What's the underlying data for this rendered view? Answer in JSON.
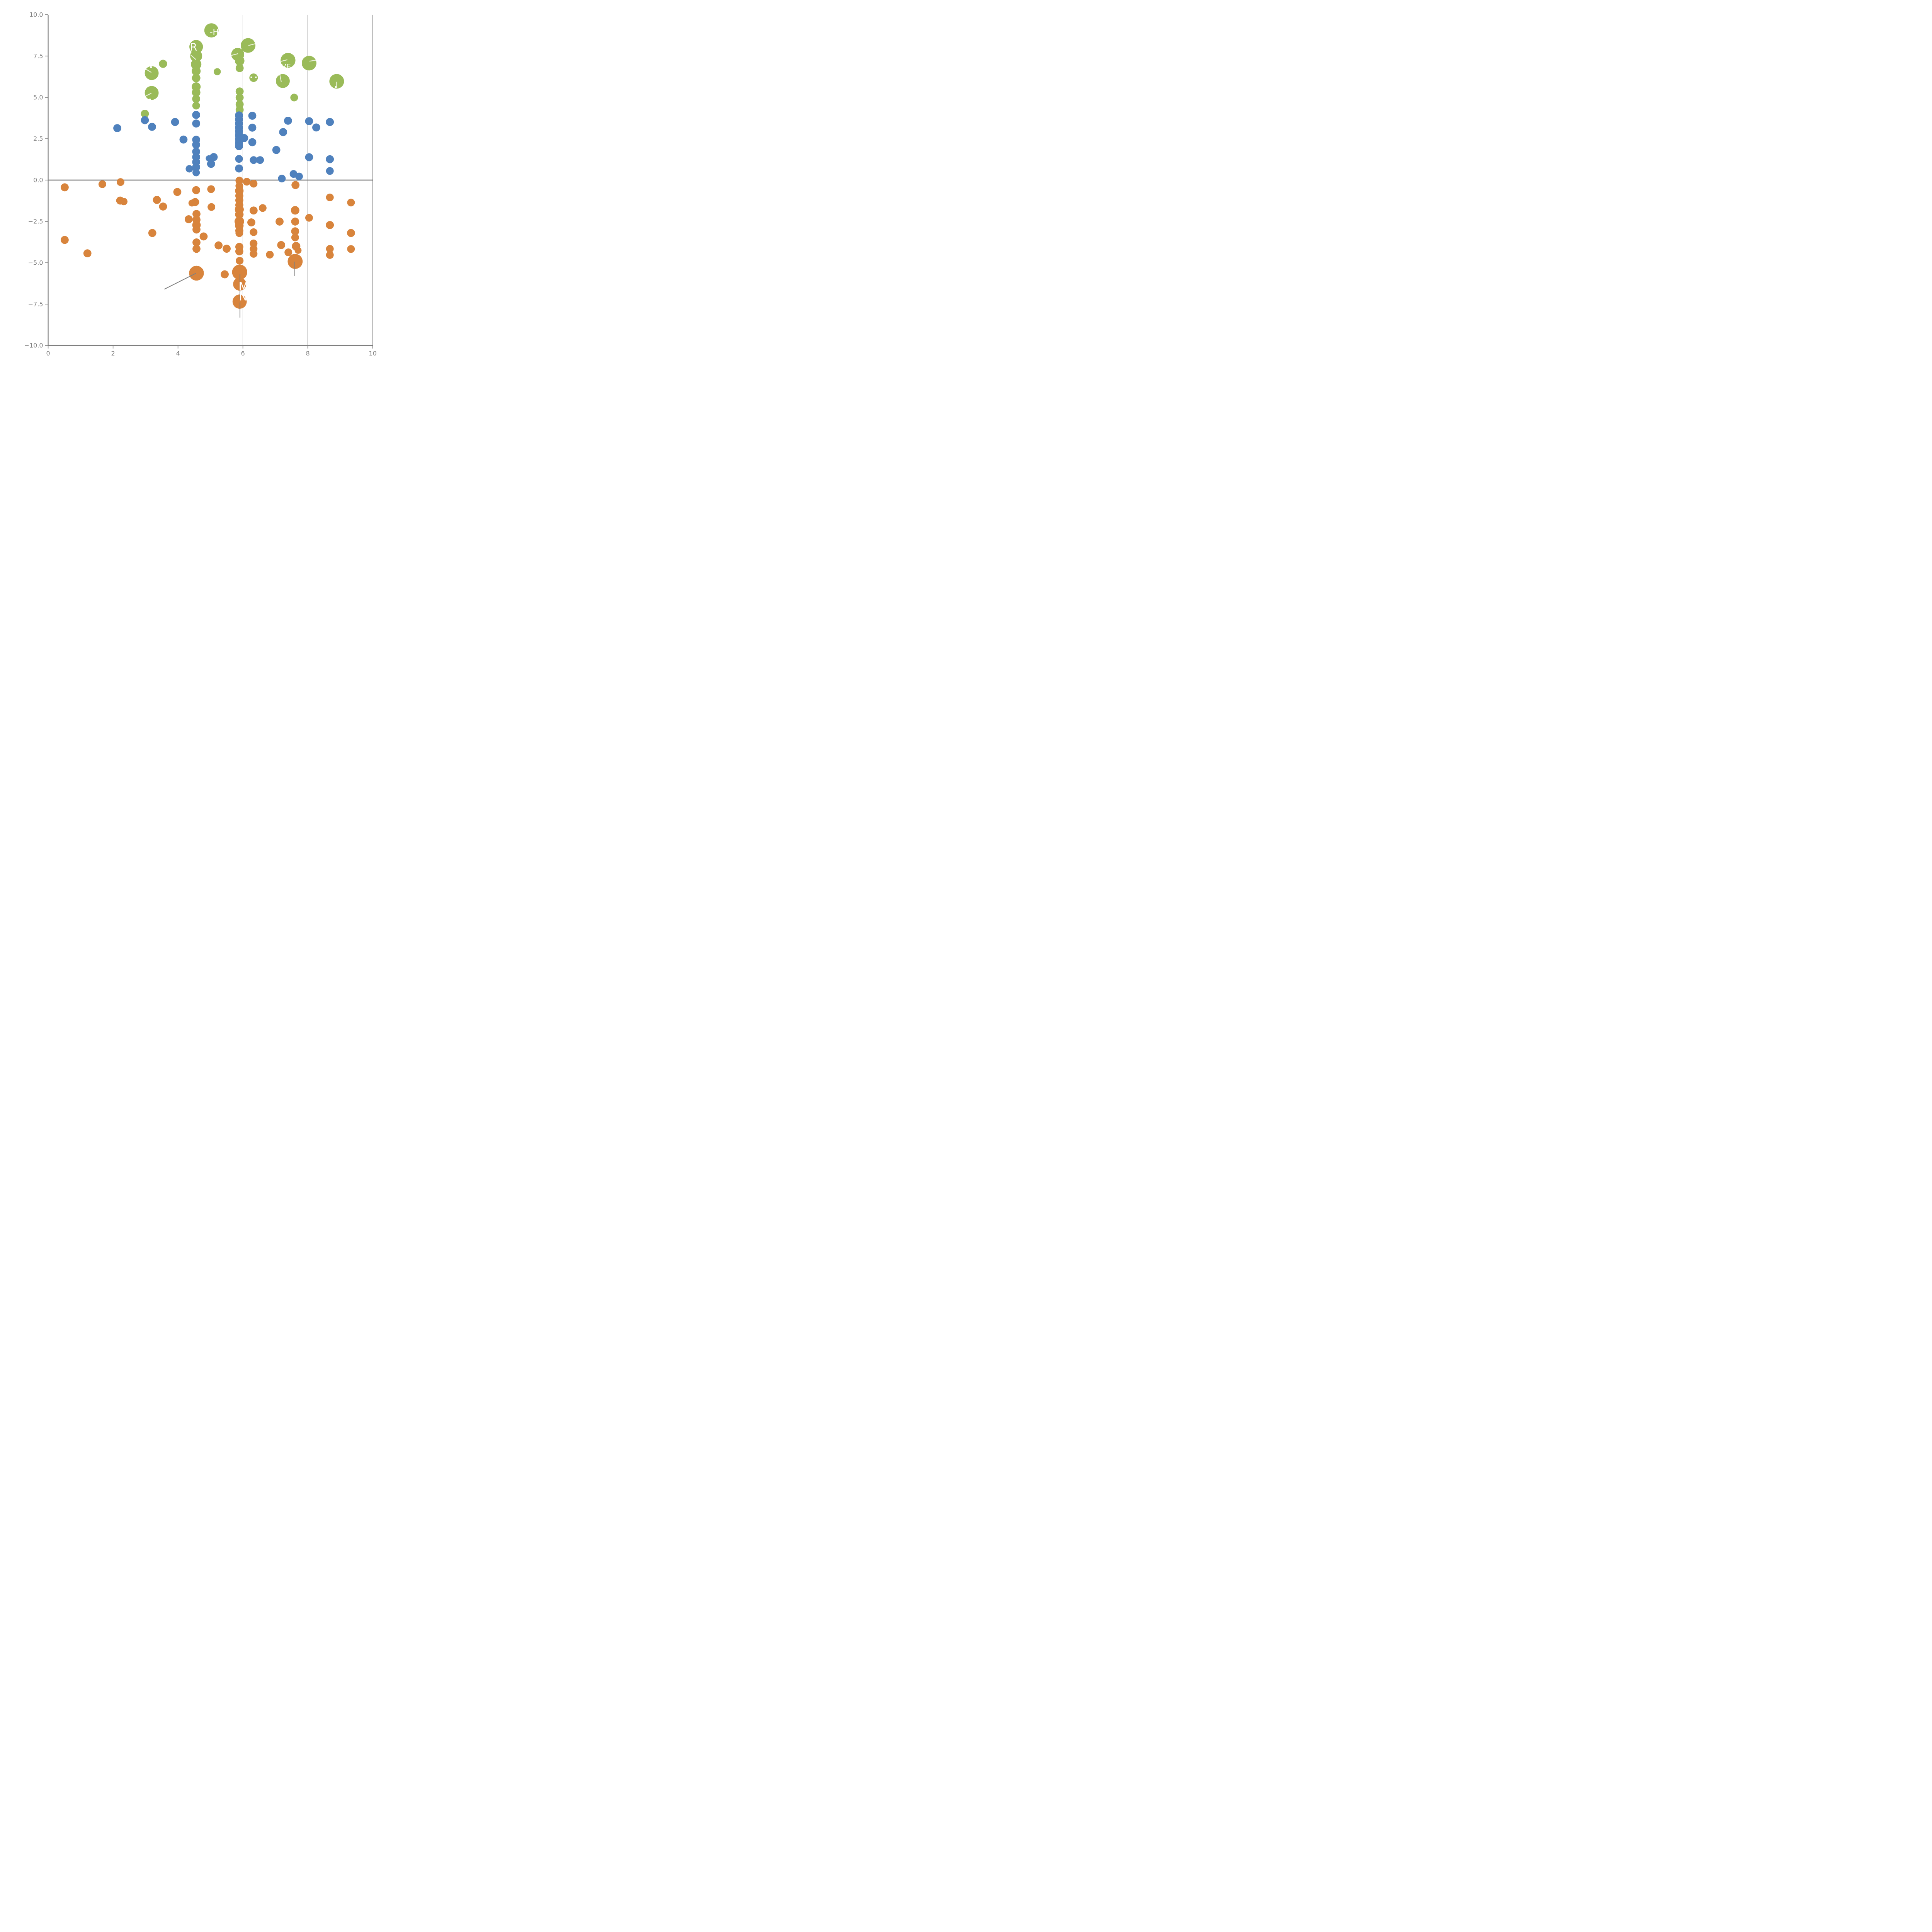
{
  "chart_data": {
    "type": "scatter",
    "title": "",
    "xlabel": "",
    "ylabel": "",
    "xlim": [
      0,
      10
    ],
    "ylim": [
      -10,
      10
    ],
    "x_ticks": [
      0,
      2,
      4,
      6,
      8,
      10
    ],
    "x_tick_labels": [
      "0",
      "2",
      "4",
      "6",
      "8",
      "10"
    ],
    "y_ticks": [
      10.0,
      7.5,
      5.0,
      2.5,
      0.0,
      -2.5,
      -5.0,
      -7.5,
      -10.0
    ],
    "y_tick_labels": [
      "10.0",
      "7.5",
      "5.0",
      "2.5",
      "0.0",
      "−2.5",
      "−5.0",
      "−7.5",
      "−10.0"
    ],
    "grid": {
      "vertical_gridlines_at": [
        2,
        4,
        6,
        8,
        10
      ],
      "horizontal_zero_line": true,
      "legend": "none"
    },
    "colors": {
      "green": "#9abb59",
      "blue": "#4f81bd",
      "orange": "#d8843c",
      "axis": "#7f7f7f",
      "gridline": "#666666",
      "zero_line": "#737373",
      "leader_gray": "#808080",
      "leader_pale": "rgba(255,255,255,0.78)",
      "label_text": "#ffffff"
    },
    "series": [
      {
        "name": "green",
        "color": "#9abb59",
        "points": [
          [
            5.03,
            9.05,
            92
          ],
          [
            4.56,
            8.06,
            88
          ],
          [
            6.16,
            8.14,
            95
          ],
          [
            5.84,
            7.6,
            84
          ],
          [
            4.56,
            7.5,
            78
          ],
          [
            4.56,
            7.0,
            68
          ],
          [
            7.39,
            7.24,
            96
          ],
          [
            8.04,
            7.07,
            95
          ],
          [
            3.54,
            7.03,
            53
          ],
          [
            3.19,
            6.47,
            90
          ],
          [
            5.21,
            6.55,
            46
          ],
          [
            4.56,
            6.59,
            58
          ],
          [
            4.56,
            6.17,
            55
          ],
          [
            6.33,
            6.19,
            55
          ],
          [
            5.9,
            7.21,
            62
          ],
          [
            5.9,
            6.77,
            52
          ],
          [
            7.23,
            5.99,
            90
          ],
          [
            8.89,
            5.97,
            95
          ],
          [
            3.19,
            5.27,
            90
          ],
          [
            4.56,
            5.64,
            58
          ],
          [
            4.56,
            5.3,
            55
          ],
          [
            4.56,
            4.91,
            52
          ],
          [
            4.56,
            4.5,
            50
          ],
          [
            5.9,
            5.36,
            52
          ],
          [
            5.9,
            4.99,
            52
          ],
          [
            5.9,
            4.58,
            52
          ],
          [
            5.9,
            4.25,
            52
          ],
          [
            7.58,
            4.99,
            50
          ],
          [
            2.98,
            4.01,
            52
          ]
        ]
      },
      {
        "name": "blue",
        "color": "#4f81bd",
        "points": [
          [
            2.98,
            3.62,
            52
          ],
          [
            2.13,
            3.14,
            52
          ],
          [
            3.2,
            3.22,
            52
          ],
          [
            3.91,
            3.51,
            52
          ],
          [
            4.56,
            3.94,
            52
          ],
          [
            4.56,
            3.42,
            52
          ],
          [
            4.17,
            2.45,
            52
          ],
          [
            4.56,
            2.44,
            52
          ],
          [
            4.56,
            2.14,
            52
          ],
          [
            4.56,
            1.72,
            52
          ],
          [
            4.56,
            1.39,
            52
          ],
          [
            4.56,
            1.09,
            52
          ],
          [
            4.56,
            0.78,
            52
          ],
          [
            4.35,
            0.68,
            48
          ],
          [
            4.56,
            0.45,
            48
          ],
          [
            5.1,
            1.39,
            52
          ],
          [
            5.02,
            0.98,
            52
          ],
          [
            4.95,
            1.31,
            40
          ],
          [
            5.88,
            3.91,
            52
          ],
          [
            5.88,
            3.67,
            52
          ],
          [
            5.88,
            3.43,
            52
          ],
          [
            5.88,
            3.19,
            52
          ],
          [
            5.88,
            2.96,
            52
          ],
          [
            5.88,
            2.72,
            52
          ],
          [
            5.88,
            2.48,
            52
          ],
          [
            5.88,
            2.25,
            52
          ],
          [
            5.88,
            2.05,
            52
          ],
          [
            6.04,
            2.54,
            52
          ],
          [
            5.88,
            1.28,
            50
          ],
          [
            5.88,
            0.7,
            52
          ],
          [
            6.29,
            3.89,
            52
          ],
          [
            6.29,
            3.17,
            52
          ],
          [
            6.29,
            2.29,
            52
          ],
          [
            6.33,
            1.21,
            50
          ],
          [
            6.53,
            1.21,
            50
          ],
          [
            7.39,
            3.59,
            52
          ],
          [
            7.24,
            2.9,
            52
          ],
          [
            8.04,
            3.56,
            52
          ],
          [
            8.26,
            3.18,
            52
          ],
          [
            8.68,
            3.51,
            52
          ],
          [
            7.03,
            1.82,
            52
          ],
          [
            8.04,
            1.38,
            52
          ],
          [
            8.68,
            1.26,
            52
          ],
          [
            8.68,
            0.55,
            50
          ],
          [
            7.2,
            0.09,
            50
          ],
          [
            7.56,
            0.37,
            50
          ],
          [
            7.73,
            0.22,
            50
          ]
        ]
      },
      {
        "name": "orange",
        "color": "#d8843c",
        "points": [
          [
            0.51,
            -0.44,
            52
          ],
          [
            1.67,
            -0.25,
            50
          ],
          [
            2.23,
            -0.12,
            50
          ],
          [
            3.98,
            -0.72,
            52
          ],
          [
            4.56,
            -0.61,
            52
          ],
          [
            5.02,
            -0.55,
            50
          ],
          [
            6.12,
            -0.1,
            50
          ],
          [
            6.33,
            -0.22,
            50
          ],
          [
            7.62,
            -0.3,
            52
          ],
          [
            2.22,
            -1.24,
            52
          ],
          [
            2.33,
            -1.3,
            48
          ],
          [
            3.35,
            -1.2,
            52
          ],
          [
            3.54,
            -1.6,
            52
          ],
          [
            4.53,
            -1.33,
            52
          ],
          [
            4.43,
            -1.39,
            45
          ],
          [
            5.03,
            -1.63,
            50
          ],
          [
            5.89,
            -0.03,
            50
          ],
          [
            5.89,
            -0.35,
            50
          ],
          [
            5.89,
            -0.65,
            55
          ],
          [
            5.89,
            -0.95,
            52
          ],
          [
            5.89,
            -1.22,
            52
          ],
          [
            5.89,
            -1.51,
            52
          ],
          [
            5.89,
            -1.78,
            58
          ],
          [
            5.89,
            -2.08,
            55
          ],
          [
            5.89,
            -2.5,
            62
          ],
          [
            5.89,
            -2.76,
            55
          ],
          [
            5.89,
            -3.06,
            52
          ],
          [
            5.89,
            -3.21,
            50
          ],
          [
            5.89,
            -4.04,
            52
          ],
          [
            5.89,
            -4.31,
            52
          ],
          [
            5.9,
            -4.88,
            50
          ],
          [
            6.33,
            -1.84,
            52
          ],
          [
            6.61,
            -1.69,
            50
          ],
          [
            7.61,
            -1.83,
            55
          ],
          [
            6.26,
            -2.56,
            52
          ],
          [
            7.13,
            -2.51,
            52
          ],
          [
            7.61,
            -2.51,
            52
          ],
          [
            8.04,
            -2.28,
            50
          ],
          [
            8.68,
            -2.72,
            52
          ],
          [
            9.33,
            -1.36,
            50
          ],
          [
            8.68,
            -1.05,
            50
          ],
          [
            9.33,
            -3.2,
            52
          ],
          [
            4.33,
            -2.37,
            52
          ],
          [
            4.57,
            -2.05,
            52
          ],
          [
            4.57,
            -2.4,
            52
          ],
          [
            4.57,
            -2.72,
            55
          ],
          [
            4.57,
            -2.99,
            52
          ],
          [
            3.21,
            -3.2,
            52
          ],
          [
            6.33,
            -3.15,
            50
          ],
          [
            0.51,
            -3.62,
            52
          ],
          [
            4.79,
            -3.41,
            52
          ],
          [
            7.18,
            -3.93,
            52
          ],
          [
            7.61,
            -3.1,
            52
          ],
          [
            7.61,
            -3.47,
            50
          ],
          [
            7.4,
            -4.37,
            50
          ],
          [
            7.64,
            -4.0,
            55
          ],
          [
            7.7,
            -4.25,
            45
          ],
          [
            4.57,
            -3.77,
            52
          ],
          [
            4.57,
            -4.16,
            52
          ],
          [
            5.25,
            -3.95,
            52
          ],
          [
            5.5,
            -4.15,
            52
          ],
          [
            6.33,
            -3.83,
            50
          ],
          [
            6.33,
            -4.16,
            50
          ],
          [
            6.33,
            -4.46,
            50
          ],
          [
            6.83,
            -4.51,
            50
          ],
          [
            8.68,
            -4.16,
            50
          ],
          [
            8.68,
            -4.53,
            50
          ],
          [
            9.33,
            -4.17,
            50
          ],
          [
            1.21,
            -4.43,
            52
          ],
          [
            7.61,
            -4.92,
            97
          ],
          [
            4.57,
            -5.63,
            96
          ],
          [
            5.44,
            -5.7,
            52
          ],
          [
            5.9,
            -5.57,
            98
          ],
          [
            5.9,
            -6.29,
            85
          ],
          [
            5.9,
            -7.35,
            92
          ]
        ]
      }
    ],
    "bubble_labels": [
      {
        "text": "-H",
        "x": 5.12,
        "y": 8.95,
        "size": 21
      },
      {
        "text": "R",
        "x": 4.48,
        "y": 8.06,
        "size": 27
      },
      {
        "text": "VE",
        "x": 7.33,
        "y": 6.88,
        "size": 19
      },
      {
        "text": "M",
        "x": 6.02,
        "y": -6.42,
        "size": 30
      },
      {
        "text": "N",
        "x": 6.01,
        "y": -7.02,
        "size": 30
      }
    ],
    "leader_lines_gray": [
      {
        "x1": 3.59,
        "y1": -6.59,
        "x2": 4.54,
        "y2": -5.65
      },
      {
        "x1": 5.91,
        "y1": -5.7,
        "x2": 5.91,
        "y2": -7.16
      },
      {
        "x1": 5.91,
        "y1": -7.42,
        "x2": 5.91,
        "y2": -8.3
      },
      {
        "x1": 7.6,
        "y1": -4.95,
        "x2": 7.6,
        "y2": -5.79
      }
    ],
    "leader_lines_pale": [
      {
        "x1": 4.4,
        "y1": 7.55,
        "x2": 4.55,
        "y2": 7.29
      },
      {
        "x1": 7.18,
        "y1": 7.18,
        "x2": 7.36,
        "y2": 7.27
      },
      {
        "x1": 8.06,
        "y1": 7.19,
        "x2": 8.26,
        "y2": 7.25
      },
      {
        "x1": 7.11,
        "y1": 6.66,
        "x2": 7.18,
        "y2": 5.96
      },
      {
        "x1": 3.01,
        "y1": 6.71,
        "x2": 3.17,
        "y2": 6.52
      },
      {
        "x1": 2.99,
        "y1": 5.07,
        "x2": 3.17,
        "y2": 5.24
      },
      {
        "x1": 8.89,
        "y1": 5.92,
        "x2": 8.89,
        "y2": 5.58
      },
      {
        "x1": 6.18,
        "y1": 8.14,
        "x2": 6.39,
        "y2": 8.25
      },
      {
        "x1": 5.65,
        "y1": 7.54,
        "x2": 5.84,
        "y2": 7.64
      }
    ],
    "white_glyph_fragments": [
      {
        "x": 3.17,
        "y": 6.83,
        "w": 5,
        "h": 4
      },
      {
        "x": 3.14,
        "y": 4.87,
        "w": 5,
        "h": 4
      },
      {
        "x": 6.26,
        "y": 6.22,
        "w": 4,
        "h": 3
      },
      {
        "x": 6.4,
        "y": 6.22,
        "w": 4,
        "h": 3
      },
      {
        "x": 8.86,
        "y": 5.62,
        "w": 3,
        "h": 5
      }
    ]
  }
}
